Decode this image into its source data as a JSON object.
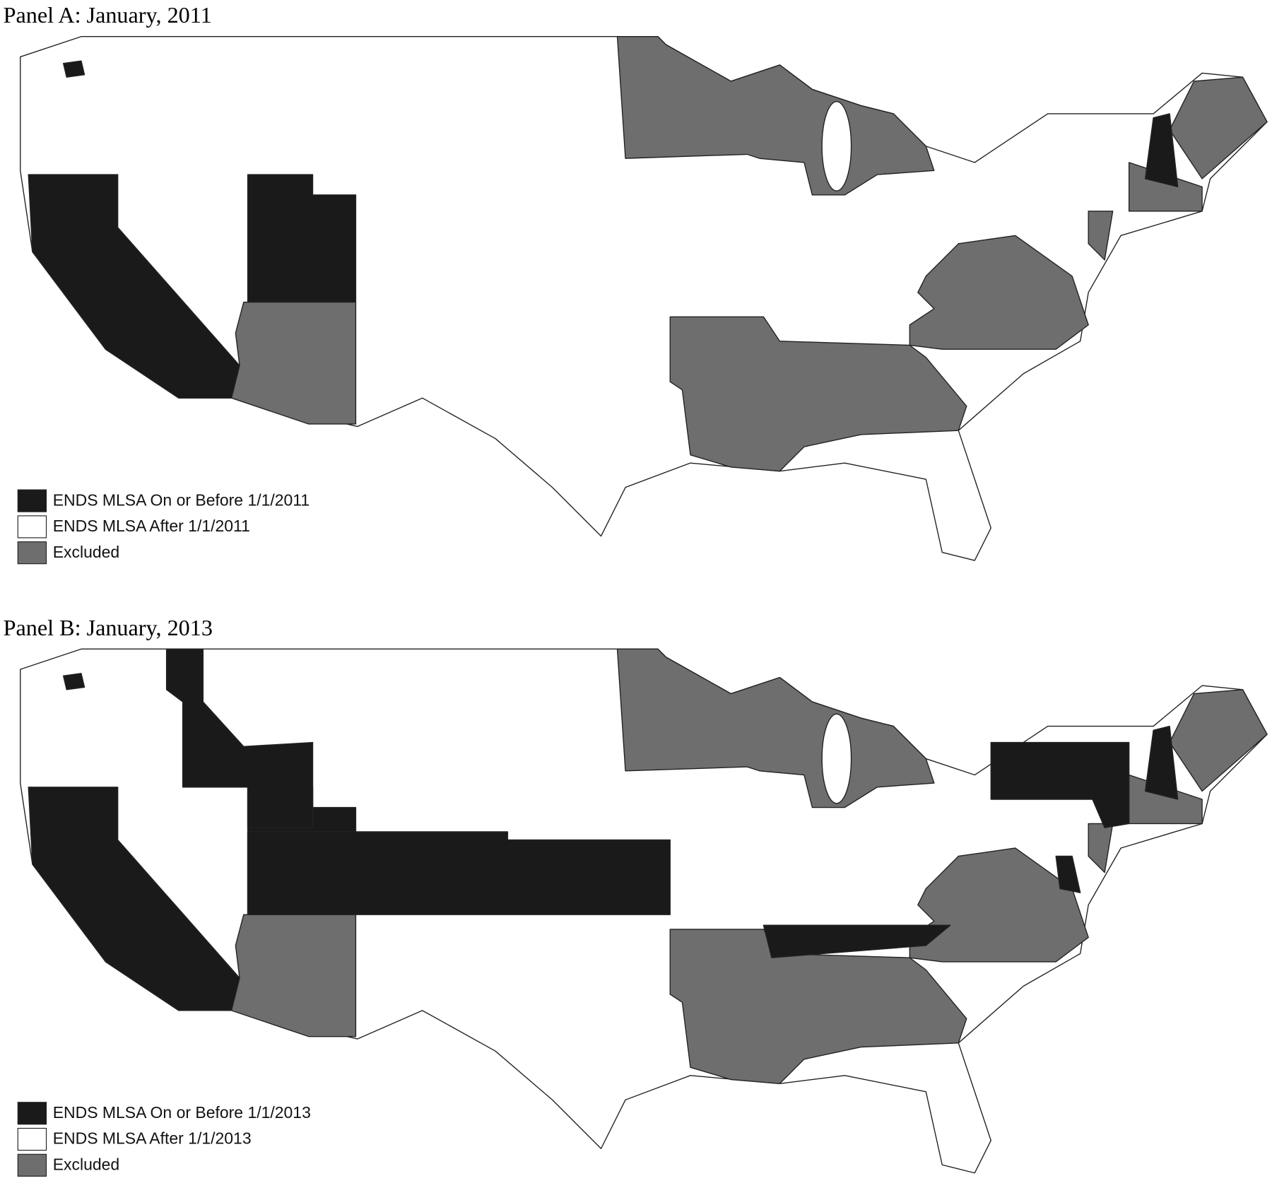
{
  "panels": [
    {
      "title": "Panel A: January, 2011",
      "legend": [
        {
          "label": "ENDS MLSA On or Before 1/1/2011",
          "color": "#1a1a1a"
        },
        {
          "label": "ENDS MLSA After 1/1/2011",
          "color": "#ffffff"
        },
        {
          "label": "Excluded",
          "color": "#6e6e6e"
        }
      ]
    },
    {
      "title": "Panel B: January, 2013",
      "legend": [
        {
          "label": "ENDS MLSA On or Before 1/1/2013",
          "color": "#1a1a1a"
        },
        {
          "label": "ENDS MLSA After 1/1/2013",
          "color": "#ffffff"
        },
        {
          "label": "Excluded",
          "color": "#6e6e6e"
        }
      ]
    }
  ]
}
